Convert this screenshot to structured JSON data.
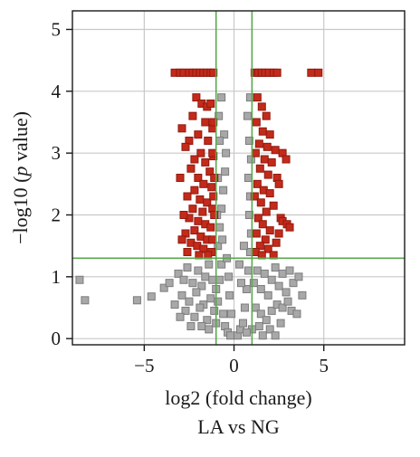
{
  "chart_data": {
    "type": "scatter",
    "xlabel": "log2 (fold change)",
    "ylabel_parts": [
      "−log10 (",
      "p",
      " value)"
    ],
    "caption": "LA vs NG",
    "xlim": [
      -9,
      9.5
    ],
    "ylim": [
      -0.1,
      5.3
    ],
    "x_ticks": [
      -5,
      0,
      5
    ],
    "x_tick_labels": [
      "−5",
      "0",
      "5"
    ],
    "y_ticks": [
      0,
      1,
      2,
      3,
      4,
      5
    ],
    "y_tick_labels": [
      "0",
      "1",
      "2",
      "3",
      "4",
      "5"
    ],
    "grid": true,
    "thresholds": {
      "x": [
        -1,
        1
      ],
      "y": 1.3
    },
    "colors": {
      "significant": "#c42a1a",
      "significant_edge": "#8f1a0e",
      "not_significant": "#a8a8a8",
      "not_significant_edge": "#7c7c7c",
      "threshold_line": "#5aa84e",
      "grid": "#c8c8c8"
    },
    "series": [
      {
        "points": [
          [
            -3.3,
            4.3
          ],
          [
            -3.0,
            4.3
          ],
          [
            -2.8,
            4.3
          ],
          [
            -2.5,
            4.3
          ],
          [
            -2.3,
            4.3
          ],
          [
            -2.1,
            4.3
          ],
          [
            -1.9,
            4.3
          ],
          [
            -1.7,
            4.3
          ],
          [
            -1.5,
            4.3
          ],
          [
            -1.3,
            4.3
          ],
          [
            -1.15,
            4.3
          ],
          [
            1.15,
            4.3
          ],
          [
            1.35,
            4.3
          ],
          [
            1.55,
            4.3
          ],
          [
            1.75,
            4.3
          ],
          [
            1.95,
            4.3
          ],
          [
            2.2,
            4.3
          ],
          [
            2.4,
            4.3
          ],
          [
            4.3,
            4.3
          ],
          [
            4.7,
            4.3
          ],
          [
            -2.1,
            3.9
          ],
          [
            -1.8,
            3.8
          ],
          [
            -1.5,
            3.75
          ],
          [
            -1.3,
            3.8
          ],
          [
            -2.3,
            3.6
          ],
          [
            -1.6,
            3.5
          ],
          [
            -1.2,
            3.4
          ],
          [
            -2.0,
            3.3
          ],
          [
            -2.5,
            3.2
          ],
          [
            -1.45,
            3.2
          ],
          [
            -2.7,
            3.1
          ],
          [
            -1.85,
            3.0
          ],
          [
            -2.2,
            2.9
          ],
          [
            -1.15,
            2.95
          ],
          [
            -1.6,
            2.85
          ],
          [
            -2.4,
            2.75
          ],
          [
            -1.35,
            2.7
          ],
          [
            -2.0,
            2.6
          ],
          [
            -1.7,
            2.5
          ],
          [
            -2.2,
            2.4
          ],
          [
            -1.25,
            2.45
          ],
          [
            -2.6,
            2.3
          ],
          [
            -1.9,
            2.25
          ],
          [
            -1.5,
            2.2
          ],
          [
            -2.3,
            2.1
          ],
          [
            -1.75,
            2.05
          ],
          [
            -1.2,
            2.1
          ],
          [
            -2.5,
            1.95
          ],
          [
            -2.0,
            1.9
          ],
          [
            -1.6,
            1.85
          ],
          [
            -1.3,
            1.8
          ],
          [
            -2.2,
            1.75
          ],
          [
            -2.7,
            1.7
          ],
          [
            -1.85,
            1.65
          ],
          [
            -1.5,
            1.6
          ],
          [
            -2.4,
            1.55
          ],
          [
            -2.05,
            1.5
          ],
          [
            -1.7,
            1.45
          ],
          [
            -1.25,
            1.4
          ],
          [
            -2.6,
            1.4
          ],
          [
            -1.95,
            1.35
          ],
          [
            -1.45,
            1.35
          ],
          [
            -1.15,
            3.5
          ],
          [
            -1.2,
            3.0
          ],
          [
            -1.1,
            2.6
          ],
          [
            -1.15,
            2.3
          ],
          [
            -1.1,
            2.0
          ],
          [
            -1.2,
            1.6
          ],
          [
            -2.9,
            3.4
          ],
          [
            -3.0,
            2.6
          ],
          [
            -2.8,
            2.0
          ],
          [
            -2.9,
            1.6
          ],
          [
            1.3,
            3.9
          ],
          [
            1.55,
            3.75
          ],
          [
            1.8,
            3.6
          ],
          [
            1.25,
            3.5
          ],
          [
            1.6,
            3.35
          ],
          [
            2.0,
            3.3
          ],
          [
            1.4,
            3.15
          ],
          [
            1.85,
            3.1
          ],
          [
            2.3,
            3.05
          ],
          [
            1.2,
            3.0
          ],
          [
            1.7,
            2.9
          ],
          [
            2.1,
            2.85
          ],
          [
            1.45,
            2.75
          ],
          [
            1.9,
            2.65
          ],
          [
            2.4,
            2.6
          ],
          [
            1.3,
            2.5
          ],
          [
            1.65,
            2.4
          ],
          [
            2.0,
            2.35
          ],
          [
            1.15,
            2.3
          ],
          [
            1.5,
            2.2
          ],
          [
            2.2,
            2.15
          ],
          [
            1.8,
            2.05
          ],
          [
            1.35,
            1.95
          ],
          [
            2.6,
            1.95
          ],
          [
            1.6,
            1.85
          ],
          [
            2.0,
            1.75
          ],
          [
            1.25,
            1.7
          ],
          [
            1.75,
            1.6
          ],
          [
            2.35,
            1.55
          ],
          [
            1.45,
            1.5
          ],
          [
            1.9,
            1.45
          ],
          [
            1.2,
            1.4
          ],
          [
            2.2,
            1.35
          ],
          [
            1.55,
            1.35
          ],
          [
            2.7,
            3.0
          ],
          [
            2.9,
            2.9
          ],
          [
            2.5,
            2.5
          ],
          [
            2.7,
            1.9
          ],
          [
            2.95,
            1.85
          ],
          [
            2.5,
            1.7
          ],
          [
            3.1,
            1.8
          ]
        ],
        "significant": true
      },
      {
        "points": [
          [
            -8.6,
            0.95
          ],
          [
            -8.3,
            0.62
          ],
          [
            -5.4,
            0.62
          ],
          [
            -4.6,
            0.68
          ],
          [
            -3.9,
            0.82
          ],
          [
            -3.1,
            1.05
          ],
          [
            -2.8,
            0.95
          ],
          [
            -2.6,
            1.15
          ],
          [
            -2.3,
            0.9
          ],
          [
            -2.0,
            1.1
          ],
          [
            -1.8,
            0.85
          ],
          [
            -1.6,
            1.0
          ],
          [
            -1.4,
            1.2
          ],
          [
            -1.2,
            0.95
          ],
          [
            -2.9,
            0.7
          ],
          [
            -2.5,
            0.6
          ],
          [
            -2.1,
            0.75
          ],
          [
            -1.7,
            0.55
          ],
          [
            -1.3,
            0.65
          ],
          [
            -1.0,
            0.8
          ],
          [
            -2.7,
            0.45
          ],
          [
            -2.2,
            0.35
          ],
          [
            -1.9,
            0.5
          ],
          [
            -1.5,
            0.3
          ],
          [
            -1.1,
            0.45
          ],
          [
            -0.9,
            0.6
          ],
          [
            -0.8,
            0.95
          ],
          [
            -0.7,
            1.2
          ],
          [
            -0.6,
            0.4
          ],
          [
            -1.8,
            0.2
          ],
          [
            -1.4,
            0.15
          ],
          [
            -1.0,
            0.25
          ],
          [
            -0.5,
            0.2
          ],
          [
            -0.35,
            0.1
          ],
          [
            -0.2,
            0.05
          ],
          [
            -2.4,
            0.2
          ],
          [
            -3.3,
            0.55
          ],
          [
            -3.6,
            0.9
          ],
          [
            -3.0,
            0.35
          ],
          [
            -0.9,
            1.5
          ],
          [
            -0.8,
            1.8
          ],
          [
            -0.7,
            2.1
          ],
          [
            -0.6,
            2.4
          ],
          [
            -0.5,
            2.7
          ],
          [
            -0.45,
            3.0
          ],
          [
            -0.55,
            3.3
          ],
          [
            -0.85,
            3.6
          ],
          [
            -0.7,
            3.9
          ],
          [
            -0.95,
            2.0
          ],
          [
            -0.65,
            1.6
          ],
          [
            -0.4,
            1.3
          ],
          [
            -0.3,
            1.0
          ],
          [
            -0.25,
            0.7
          ],
          [
            -0.15,
            0.4
          ],
          [
            -0.9,
            2.6
          ],
          [
            -0.8,
            3.2
          ],
          [
            0.2,
            0.05
          ],
          [
            0.35,
            0.15
          ],
          [
            0.5,
            0.25
          ],
          [
            0.6,
            0.5
          ],
          [
            0.7,
            0.8
          ],
          [
            0.8,
            1.1
          ],
          [
            0.9,
            1.4
          ],
          [
            0.95,
            1.7
          ],
          [
            0.85,
            2.0
          ],
          [
            0.9,
            2.3
          ],
          [
            0.8,
            2.6
          ],
          [
            0.95,
            2.9
          ],
          [
            0.85,
            3.2
          ],
          [
            0.75,
            3.6
          ],
          [
            0.9,
            3.9
          ],
          [
            0.4,
            0.9
          ],
          [
            0.3,
            1.2
          ],
          [
            0.55,
            1.5
          ],
          [
            1.1,
            0.9
          ],
          [
            1.3,
            1.1
          ],
          [
            1.5,
            0.8
          ],
          [
            1.7,
            1.05
          ],
          [
            1.9,
            0.7
          ],
          [
            2.1,
            0.95
          ],
          [
            2.3,
            1.15
          ],
          [
            2.5,
            0.85
          ],
          [
            2.7,
            1.05
          ],
          [
            2.9,
            0.75
          ],
          [
            1.2,
            0.5
          ],
          [
            1.5,
            0.4
          ],
          [
            1.8,
            0.3
          ],
          [
            2.1,
            0.45
          ],
          [
            2.4,
            0.55
          ],
          [
            2.7,
            0.5
          ],
          [
            3.0,
            0.6
          ],
          [
            1.4,
            0.2
          ],
          [
            1.0,
            0.15
          ],
          [
            0.7,
            0.1
          ],
          [
            3.3,
            0.9
          ],
          [
            3.6,
            1.0
          ],
          [
            2.0,
            0.15
          ],
          [
            2.6,
            0.25
          ],
          [
            3.2,
            0.45
          ],
          [
            3.5,
            0.4
          ],
          [
            3.8,
            0.7
          ],
          [
            2.3,
            0.05
          ],
          [
            1.6,
            0.05
          ],
          [
            3.1,
            1.1
          ]
        ],
        "significant": false
      }
    ]
  }
}
